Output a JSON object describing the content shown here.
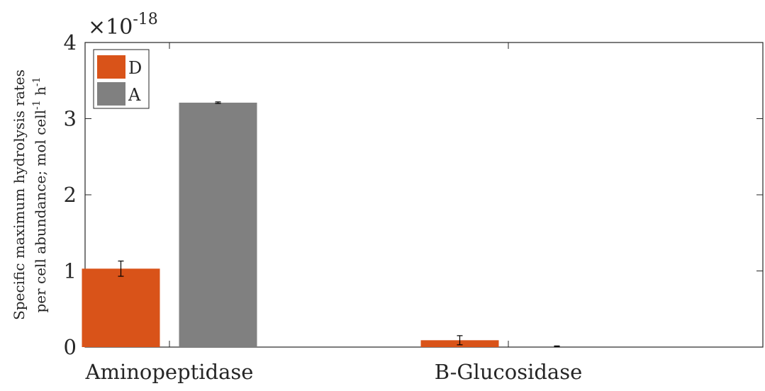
{
  "chart_data": {
    "type": "bar",
    "categories": [
      "Aminopeptidase",
      "B-Glucosidase"
    ],
    "series": [
      {
        "name": "D",
        "color": "#d95319",
        "values": [
          1.03,
          0.09
        ],
        "errors": [
          0.1,
          0.06
        ]
      },
      {
        "name": "A",
        "color": "#808080",
        "values": [
          3.21,
          0.01
        ],
        "errors": [
          0.01,
          0.005
        ]
      }
    ],
    "scale_base": "×10",
    "scale_exponent": "-18",
    "ylabel_line1": "Specific maximum hydrolysis rates",
    "ylabel_line2_base": "per cell abundance; mol cell",
    "ylabel_sup1": "-1",
    "ylabel_h": " h",
    "ylabel_sup2": "-1",
    "ylim": [
      0,
      4
    ],
    "yticks": [
      "0",
      "1",
      "2",
      "3",
      "4"
    ],
    "legend_position": "top-left",
    "grid": false
  }
}
